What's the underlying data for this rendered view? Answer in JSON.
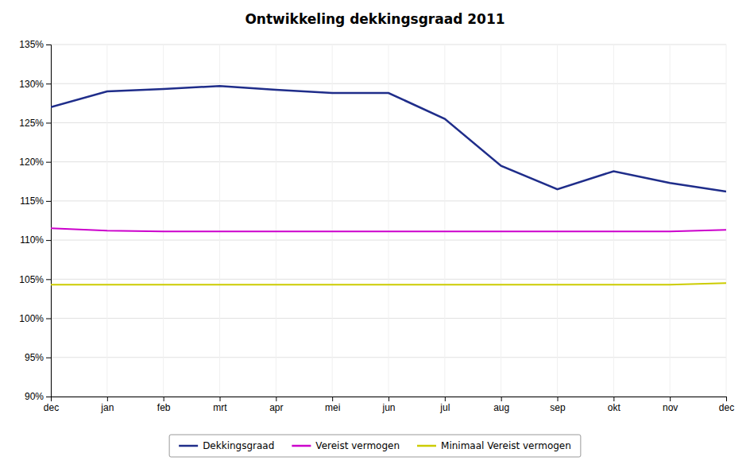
{
  "chart_data": {
    "type": "line",
    "title": "Ontwikkeling dekkingsgraad 2011",
    "categories": [
      "dec",
      "jan",
      "feb",
      "mrt",
      "apr",
      "mei",
      "jun",
      "jul",
      "aug",
      "sep",
      "okt",
      "nov",
      "dec"
    ],
    "series": [
      {
        "name": "Dekkingsgraad",
        "color": "#1F2D8A",
        "values": [
          127.0,
          129.0,
          129.3,
          129.7,
          129.2,
          128.8,
          128.8,
          125.5,
          119.5,
          116.5,
          118.8,
          117.3,
          116.2
        ]
      },
      {
        "name": "Vereist vermogen",
        "color": "#CC00CC",
        "values": [
          111.5,
          111.2,
          111.1,
          111.1,
          111.1,
          111.1,
          111.1,
          111.1,
          111.1,
          111.1,
          111.1,
          111.1,
          111.3
        ]
      },
      {
        "name": "Minimaal Vereist vermogen",
        "color": "#CCCC00",
        "values": [
          104.3,
          104.3,
          104.3,
          104.3,
          104.3,
          104.3,
          104.3,
          104.3,
          104.3,
          104.3,
          104.3,
          104.3,
          104.5
        ]
      }
    ],
    "ylim": [
      90,
      135
    ],
    "yticks": [
      {
        "value": 90,
        "label": "90%"
      },
      {
        "value": 95,
        "label": "95%"
      },
      {
        "value": 100,
        "label": "100%"
      },
      {
        "value": 105,
        "label": "105%"
      },
      {
        "value": 110,
        "label": "110%"
      },
      {
        "value": 115,
        "label": "115%"
      },
      {
        "value": 120,
        "label": "120%"
      },
      {
        "value": 125,
        "label": "125%"
      },
      {
        "value": 130,
        "label": "130%"
      },
      {
        "value": 135,
        "label": "135%"
      }
    ],
    "grid": true,
    "legend": "bottom"
  }
}
